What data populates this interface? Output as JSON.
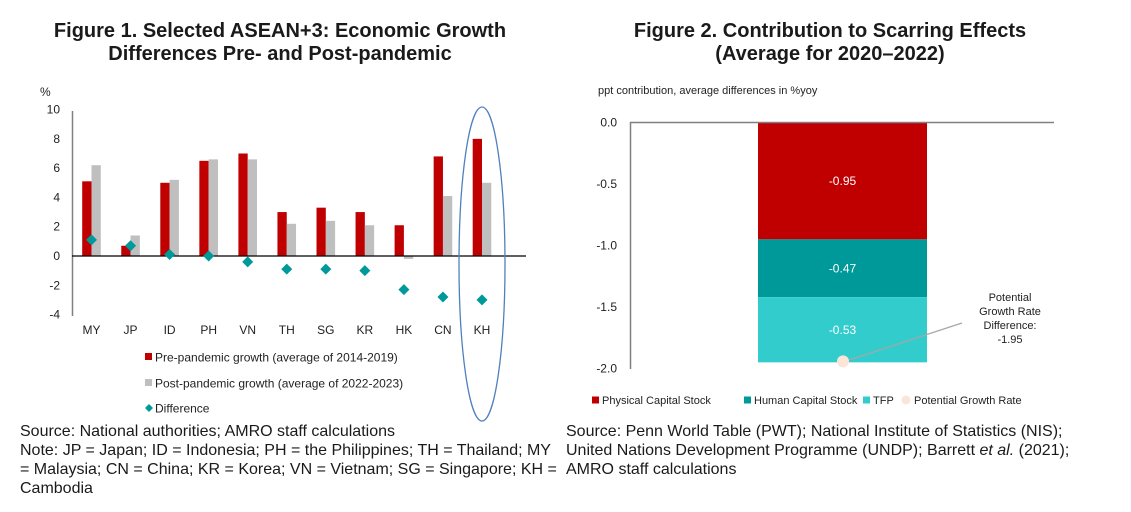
{
  "figure1": {
    "title_line1": "Figure 1. Selected ASEAN+3: Economic Growth",
    "title_line2": "Differences Pre- and Post-pandemic",
    "source": "Source: National authorities; AMRO staff calculations",
    "note": "Note:  JP = Japan; ID = Indonesia; PH = the Philippines; TH = Thailand; MY = Malaysia; CN = China; KR = Korea; VN = Vietnam; SG = Singapore; KH = Cambodia",
    "highlight": "KH"
  },
  "figure2": {
    "title_line1": "Figure 2. Contribution to Scarring Effects",
    "title_line2": "(Average for 2020–2022)",
    "source_part1": "Source: Penn World Table (PWT); National Institute of Statistics (NIS); United Nations Development Programme (UNDP); Barrett ",
    "source_italic1": "et al.",
    "source_part2": " (2021); AMRO staff calculations"
  },
  "chart_data": [
    {
      "type": "bar",
      "title": "Figure 1. Selected ASEAN+3: Economic Growth Differences Pre- and Post-pandemic",
      "ylabel": "%",
      "xlabel": "",
      "ylim": [
        -4,
        10
      ],
      "yticks": [
        10,
        8,
        6,
        4,
        2,
        0,
        -2,
        -4
      ],
      "grid": false,
      "legend_position": "bottom",
      "categories": [
        "MY",
        "JP",
        "ID",
        "PH",
        "VN",
        "TH",
        "SG",
        "KR",
        "HK",
        "CN",
        "KH"
      ],
      "series": [
        {
          "name": "Pre-pandemic growth (average of 2014-2019)",
          "kind": "bar",
          "color": "#c00000",
          "values": [
            5.1,
            0.7,
            5.0,
            6.5,
            7.0,
            3.0,
            3.3,
            3.0,
            2.1,
            6.8,
            8.0
          ]
        },
        {
          "name": "Post-pandemic growth (average of 2022-2023)",
          "kind": "bar",
          "color": "#bfbfbf",
          "values": [
            6.2,
            1.4,
            5.2,
            6.6,
            6.6,
            2.2,
            2.4,
            2.1,
            -0.2,
            4.1,
            5.0
          ]
        },
        {
          "name": "Difference",
          "kind": "marker",
          "color": "#009999",
          "values": [
            1.1,
            0.7,
            0.1,
            0.0,
            -0.4,
            -0.9,
            -0.9,
            -1.0,
            -2.3,
            -2.8,
            -3.0
          ]
        }
      ]
    },
    {
      "type": "bar",
      "stacked": true,
      "title": "Figure 2. Contribution to Scarring Effects (Average for 2020–2022)",
      "ylabel": "ppt contribution, average differences in %yoy",
      "xlabel": "",
      "ylim": [
        -2.0,
        0.0
      ],
      "yticks": [
        "0.0",
        "-0.5",
        "-1.0",
        "-1.5",
        "-2.0"
      ],
      "ytick_values": [
        0.0,
        -0.5,
        -1.0,
        -1.5,
        -2.0
      ],
      "grid": false,
      "legend_position": "bottom",
      "series": [
        {
          "name": "Physical Capital Stock",
          "color": "#c00000",
          "value": -0.95,
          "label": "-0.95"
        },
        {
          "name": "Human Capital Stock",
          "color": "#009999",
          "value": -0.47,
          "label": "-0.47"
        },
        {
          "name": "TFP",
          "color": "#33cccc",
          "value": -0.53,
          "label": "-0.53"
        },
        {
          "name": "Potential Growth Rate",
          "color": "#fbe5d6",
          "value": -1.95,
          "kind": "marker"
        }
      ],
      "annotation": [
        "Potential",
        "Growth Rate",
        "Difference:",
        "-1.95"
      ]
    }
  ]
}
